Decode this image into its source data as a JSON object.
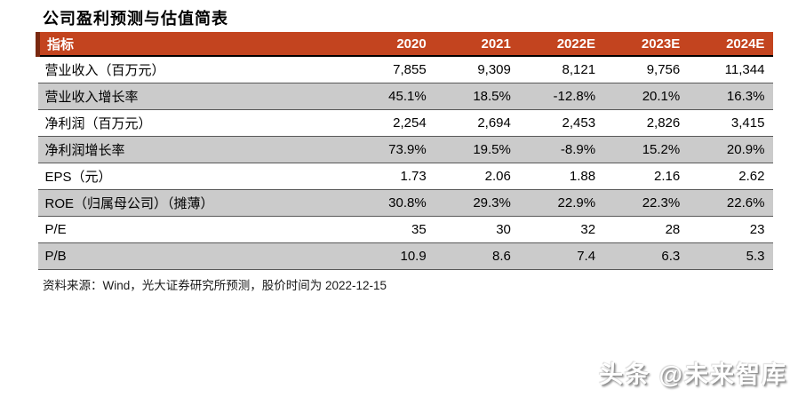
{
  "page": {
    "title": "公司盈利预测与估值简表",
    "source_note": "资料来源：Wind，光大证券研究所预测，股价时间为 2022-12-15",
    "watermark": "头条 @未来智库"
  },
  "colors": {
    "header_bg": "#C3441F",
    "header_accent": "#7A2810",
    "alt_row_bg": "#CBCBCB",
    "divider": "#595959",
    "header_text": "#ffffff"
  },
  "table": {
    "header": [
      "指标",
      "2020",
      "2021",
      "2022E",
      "2023E",
      "2024E"
    ],
    "rows": [
      {
        "label": "营业收入（百万元）",
        "values": [
          "7,855",
          "9,309",
          "8,121",
          "9,756",
          "11,344"
        ]
      },
      {
        "label": "营业收入增长率",
        "values": [
          "45.1%",
          "18.5%",
          "-12.8%",
          "20.1%",
          "16.3%"
        ]
      },
      {
        "label": "净利润（百万元）",
        "values": [
          "2,254",
          "2,694",
          "2,453",
          "2,826",
          "3,415"
        ]
      },
      {
        "label": "净利润增长率",
        "values": [
          "73.9%",
          "19.5%",
          "-8.9%",
          "15.2%",
          "20.9%"
        ]
      },
      {
        "label": "EPS（元）",
        "values": [
          "1.73",
          "2.06",
          "1.88",
          "2.16",
          "2.62"
        ]
      },
      {
        "label": "ROE（归属母公司）（摊薄）",
        "values": [
          "30.8%",
          "29.3%",
          "22.9%",
          "22.3%",
          "22.6%"
        ]
      },
      {
        "label": "P/E",
        "values": [
          "35",
          "30",
          "32",
          "28",
          "23"
        ]
      },
      {
        "label": "P/B",
        "values": [
          "10.9",
          "8.6",
          "7.4",
          "6.3",
          "5.3"
        ]
      }
    ]
  },
  "chart_data": {
    "type": "table",
    "title": "公司盈利预测与估值简表",
    "categories": [
      "2020",
      "2021",
      "2022E",
      "2023E",
      "2024E"
    ],
    "series": [
      {
        "name": "营业收入（百万元）",
        "values": [
          7855,
          9309,
          8121,
          9756,
          11344
        ]
      },
      {
        "name": "营业收入增长率(%)",
        "values": [
          45.1,
          18.5,
          -12.8,
          20.1,
          16.3
        ]
      },
      {
        "name": "净利润（百万元）",
        "values": [
          2254,
          2694,
          2453,
          2826,
          3415
        ]
      },
      {
        "name": "净利润增长率(%)",
        "values": [
          73.9,
          19.5,
          -8.9,
          15.2,
          20.9
        ]
      },
      {
        "name": "EPS（元）",
        "values": [
          1.73,
          2.06,
          1.88,
          2.16,
          2.62
        ]
      },
      {
        "name": "ROE（归属母公司）（摊薄）(%)",
        "values": [
          30.8,
          29.3,
          22.9,
          22.3,
          22.6
        ]
      },
      {
        "name": "P/E",
        "values": [
          35,
          30,
          32,
          28,
          23
        ]
      },
      {
        "name": "P/B",
        "values": [
          10.9,
          8.6,
          7.4,
          6.3,
          5.3
        ]
      }
    ]
  }
}
